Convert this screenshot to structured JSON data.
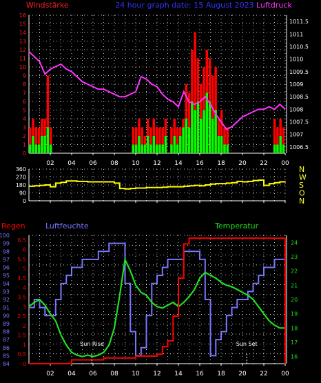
{
  "colors": {
    "wind_axis": "#ff2020",
    "pressure": "#ff33ff",
    "title": "#3333ff",
    "wind_bar_max": "#ff0000",
    "wind_bar_avg": "#00ff00",
    "direction": "#ffff00",
    "rain": "#ff0000",
    "humidity": "#7777ff",
    "temperature": "#22dd22",
    "text_white": "#ffffff",
    "dir_labels": "#ffff33",
    "grid": "#ffffff"
  },
  "header": {
    "left": "Windstärke",
    "title": "24 hour graph date: 15 August 2023",
    "right": "Luftdruck"
  },
  "x_ticks": [
    "02",
    "04",
    "06",
    "08",
    "10",
    "12",
    "14",
    "16",
    "18",
    "20",
    "22",
    "00"
  ],
  "wind_y_ticks": [
    "0",
    "1",
    "2",
    "3",
    "4",
    "5",
    "6",
    "7",
    "8",
    "9",
    "10",
    "11",
    "12",
    "13",
    "14",
    "15",
    "16"
  ],
  "pressure_y_ticks": [
    "1006.5",
    "1007",
    "1007.5",
    "1008",
    "1008.5",
    "1009",
    "1009.5",
    "1010",
    "1010.5",
    "1011",
    "1011.5"
  ],
  "direction_y_ticks": [
    "360",
    "270",
    "180",
    "90",
    "0"
  ],
  "direction_letters": [
    "N",
    "W",
    "S",
    "O",
    "N"
  ],
  "bottom_labels": {
    "rain": "Regen",
    "humidity": "Luftfeuchte",
    "temperature": "Temperatur"
  },
  "rain_y_ticks": [
    "0",
    "0.5",
    "1",
    "1.5",
    "2",
    "2.5",
    "3",
    "3.5",
    "4",
    "4.5",
    "5",
    "5.5",
    "6",
    "6.5"
  ],
  "humidity_y_ticks": [
    "84",
    "85",
    "86",
    "87",
    "88",
    "89",
    "90",
    "91",
    "92",
    "93",
    "94",
    "95",
    "96",
    "97",
    "98",
    "99",
    "100"
  ],
  "temp_y_ticks": [
    "16",
    "17",
    "18",
    "19",
    "20",
    "21",
    "22",
    "23",
    "24"
  ],
  "annotations": {
    "sunrise": "Sun Rise",
    "sunset": "Sun Set"
  },
  "chart_data": [
    {
      "type": "line",
      "name": "Luftdruck",
      "x": [
        0,
        0.5,
        1,
        1.5,
        2,
        2.5,
        3,
        3.5,
        4,
        4.5,
        5,
        5.5,
        6,
        6.5,
        7,
        7.5,
        8,
        8.5,
        9,
        9.5,
        10,
        10.5,
        11,
        11.5,
        12,
        12.5,
        13,
        13.5,
        14,
        14.5,
        15,
        15.5,
        16,
        16.5,
        17,
        17.5,
        18,
        18.5,
        19,
        19.5,
        20,
        20.5,
        21,
        21.5,
        22,
        22.5,
        23,
        23.5,
        24
      ],
      "values": [
        1010.3,
        1010.1,
        1009.9,
        1009.4,
        1009.6,
        1009.7,
        1009.8,
        1009.6,
        1009.5,
        1009.3,
        1009.1,
        1009.0,
        1008.9,
        1008.8,
        1008.8,
        1008.7,
        1008.6,
        1008.5,
        1008.5,
        1008.6,
        1008.7,
        1009.3,
        1009.2,
        1009.0,
        1008.9,
        1008.6,
        1008.4,
        1008.3,
        1008.1,
        1008.7,
        1008.3,
        1008.2,
        1008.3,
        1008.5,
        1008.2,
        1007.8,
        1007.5,
        1007.2,
        1007.3,
        1007.5,
        1007.7,
        1007.8,
        1007.9,
        1008.0,
        1008.0,
        1008.1,
        1008.0,
        1008.2,
        1008.0
      ],
      "ylim": [
        1006.25,
        1011.75
      ]
    },
    {
      "type": "bar",
      "name": "Windstärke",
      "series": [
        {
          "name": "max",
          "values": [
            3,
            4,
            3,
            3,
            4,
            4,
            9,
            3,
            0,
            0,
            0,
            0,
            0,
            0,
            0,
            0,
            0,
            0,
            0,
            0,
            0,
            0,
            0,
            0,
            0,
            0,
            0,
            0,
            0,
            0,
            0,
            0,
            0,
            0,
            0,
            3,
            3,
            4,
            3,
            2,
            4,
            3,
            4,
            3,
            3,
            3,
            4,
            0,
            3,
            4,
            3,
            3,
            4,
            8,
            7,
            12,
            14,
            11,
            8,
            10,
            12,
            11,
            9,
            10,
            4,
            5,
            3,
            3,
            0,
            0,
            0,
            0,
            0,
            0,
            0,
            0,
            0,
            0,
            0,
            0,
            0,
            0,
            0,
            4,
            3,
            4,
            3
          ]
        },
        {
          "name": "avg",
          "values": [
            1,
            2,
            1,
            1,
            2,
            2,
            3,
            1,
            0,
            0,
            0,
            0,
            0,
            0,
            0,
            0,
            0,
            0,
            0,
            0,
            0,
            0,
            0,
            0,
            0,
            0,
            0,
            0,
            0,
            0,
            0,
            0,
            0,
            0,
            0,
            1,
            1,
            2,
            1,
            1,
            2,
            1,
            2,
            1,
            1,
            1,
            2,
            0,
            1,
            2,
            1,
            2,
            3,
            4,
            3,
            6,
            5,
            6,
            4,
            5,
            7,
            6,
            4,
            5,
            2,
            2,
            1,
            1,
            0,
            0,
            0,
            0,
            0,
            0,
            0,
            0,
            0,
            0,
            0,
            0,
            0,
            0,
            0,
            1,
            1,
            2,
            1
          ]
        }
      ],
      "ylim": [
        0,
        16
      ]
    },
    {
      "type": "line",
      "name": "Windrichtung",
      "x": [
        0,
        0.5,
        1,
        1.5,
        2,
        2.5,
        3,
        3.5,
        4,
        4.5,
        5,
        5.5,
        6,
        6.5,
        7,
        7.5,
        8,
        8.5,
        9,
        9.5,
        10,
        10.5,
        11,
        11.5,
        12,
        12.5,
        13,
        13.5,
        14,
        14.5,
        15,
        15.5,
        16,
        16.5,
        17,
        17.5,
        18,
        18.5,
        19,
        19.5,
        20,
        20.5,
        21,
        21.5,
        22,
        22.5,
        23,
        23.5,
        24
      ],
      "values": [
        165,
        170,
        175,
        180,
        160,
        200,
        210,
        225,
        225,
        220,
        220,
        215,
        215,
        215,
        215,
        215,
        200,
        140,
        135,
        140,
        145,
        145,
        150,
        150,
        150,
        155,
        160,
        160,
        160,
        165,
        170,
        175,
        170,
        180,
        190,
        195,
        195,
        200,
        205,
        220,
        215,
        220,
        230,
        235,
        175,
        195,
        205,
        215,
        220
      ],
      "ylim": [
        0,
        360
      ]
    },
    {
      "type": "line",
      "name": "Regen",
      "x": [
        0,
        3,
        4,
        5,
        6,
        7,
        8,
        9,
        10,
        11,
        12,
        12.5,
        13,
        13.5,
        14,
        14.5,
        15,
        16,
        17,
        18,
        19,
        20,
        21,
        22,
        23,
        23.9,
        24
      ],
      "values": [
        0,
        0,
        0.2,
        0.2,
        0.2,
        0.3,
        0.3,
        0.3,
        0.4,
        0.4,
        0.5,
        0.9,
        1.2,
        2.5,
        4.5,
        6.3,
        6.6,
        6.6,
        6.6,
        6.6,
        6.6,
        6.6,
        6.6,
        6.6,
        6.6,
        6.6,
        0
      ],
      "ylim": [
        0,
        6.75
      ]
    },
    {
      "type": "line",
      "name": "Luftfeuchte",
      "x": [
        0,
        0.5,
        1,
        1.5,
        2,
        2.5,
        3,
        3.5,
        4,
        4.5,
        5,
        5.5,
        6,
        6.5,
        7,
        7.5,
        8,
        8.5,
        9,
        9.5,
        10,
        10.5,
        11,
        11.5,
        12,
        12.5,
        13,
        13.5,
        14,
        14.5,
        15,
        15.5,
        16,
        16.5,
        17,
        17.5,
        18,
        18.5,
        19,
        19.5,
        20,
        20.5,
        21,
        21.5,
        22,
        22.5,
        23,
        23.5,
        24
      ],
      "values": [
        91,
        92,
        91,
        90,
        90,
        92,
        94,
        95,
        96,
        96,
        97,
        97,
        97,
        98,
        98,
        99,
        99,
        99,
        94,
        88,
        85,
        86,
        90,
        94,
        95,
        96,
        97,
        97,
        97,
        98,
        98,
        98,
        97,
        92,
        85,
        87,
        88,
        90,
        91,
        92,
        92,
        93,
        94,
        95,
        96,
        96,
        97,
        97,
        97
      ],
      "ylim": [
        84,
        100
      ]
    },
    {
      "type": "line",
      "name": "Temperatur",
      "x": [
        0,
        0.5,
        1,
        1.5,
        2,
        2.5,
        3,
        3.5,
        4,
        4.5,
        5,
        5.5,
        6,
        6.5,
        7,
        7.5,
        8,
        8.5,
        9,
        9.5,
        10,
        10.5,
        11,
        11.5,
        12,
        12.5,
        13,
        13.5,
        14,
        14.5,
        15,
        15.5,
        16,
        16.5,
        17,
        17.5,
        18,
        18.5,
        19,
        19.5,
        20,
        20.5,
        21,
        21.5,
        22,
        22.5,
        23,
        23.5,
        24
      ],
      "values": [
        19.5,
        19.8,
        20.0,
        19.6,
        19.0,
        18.5,
        17.5,
        16.8,
        16.3,
        16.1,
        16.0,
        16.1,
        16.0,
        16.1,
        16.3,
        16.8,
        18.0,
        20.3,
        22.8,
        22.0,
        21.0,
        20.5,
        20.3,
        19.8,
        19.5,
        19.4,
        19.6,
        19.8,
        19.5,
        19.8,
        20.2,
        20.7,
        21.5,
        21.9,
        21.7,
        21.5,
        21.2,
        21.0,
        20.9,
        20.7,
        20.5,
        20.3,
        20.0,
        19.5,
        19.0,
        18.5,
        18.2,
        18.0,
        18.0
      ],
      "ylim": [
        15.5,
        24.5
      ]
    }
  ]
}
